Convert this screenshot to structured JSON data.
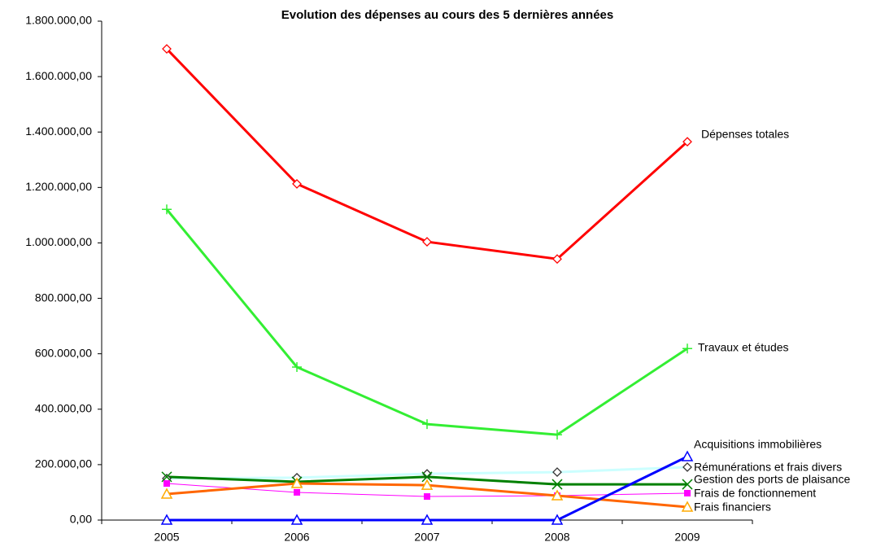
{
  "chart_data": {
    "type": "line",
    "title": "Evolution des dépenses au cours des 5 dernières années",
    "categories": [
      "2005",
      "2006",
      "2007",
      "2008",
      "2009"
    ],
    "ylim": [
      0,
      1800000
    ],
    "yticks": [
      {
        "value": 0,
        "label": "0,00"
      },
      {
        "value": 200000,
        "label": "200.000,00"
      },
      {
        "value": 400000,
        "label": "400.000,00"
      },
      {
        "value": 600000,
        "label": "600.000,00"
      },
      {
        "value": 800000,
        "label": "800.000,00"
      },
      {
        "value": 1000000,
        "label": "1.000.000,00"
      },
      {
        "value": 1200000,
        "label": "1.200.000,00"
      },
      {
        "value": 1400000,
        "label": "1.400.000,00"
      },
      {
        "value": 1600000,
        "label": "1.600.000,00"
      },
      {
        "value": 1800000,
        "label": "1.800.000,00"
      }
    ],
    "grid": false,
    "series": [
      {
        "name": "Dépenses totales",
        "color": "#ff0000",
        "marker": "diamond",
        "marker_color": "#ff0000",
        "values": [
          1700000,
          1213000,
          1004000,
          942000,
          1365000
        ]
      },
      {
        "name": "Travaux et études",
        "color": "#33ee33",
        "marker": "plus",
        "marker_color": "#33ee33",
        "values": [
          1121000,
          552000,
          346000,
          308000,
          619000
        ]
      },
      {
        "name": "Rémunérations et frais divers",
        "color": "#ccffff",
        "marker": "diamond",
        "marker_color": "#333333",
        "values": [
          150000,
          153000,
          167000,
          173000,
          191000
        ]
      },
      {
        "name": "Gestion des ports de plaisance",
        "color": "#008000",
        "marker": "x",
        "marker_color": "#008000",
        "values": [
          156000,
          138000,
          156000,
          129000,
          129000
        ]
      },
      {
        "name": "Frais de fonctionnement",
        "color": "#ff00ff",
        "marker": "square",
        "marker_color": "#ff00ff",
        "values": [
          132000,
          100000,
          85000,
          88000,
          97000
        ]
      },
      {
        "name": "Frais financiers",
        "color": "#ff6600",
        "marker": "triangle",
        "marker_color": "#ffaa00",
        "values": [
          94000,
          132000,
          126000,
          88000,
          47000
        ]
      },
      {
        "name": "Acquisitions immobilières",
        "color": "#0000ff",
        "marker": "triangle",
        "marker_color": "#0000ff",
        "values": [
          0,
          0,
          0,
          0,
          229000
        ]
      }
    ]
  }
}
